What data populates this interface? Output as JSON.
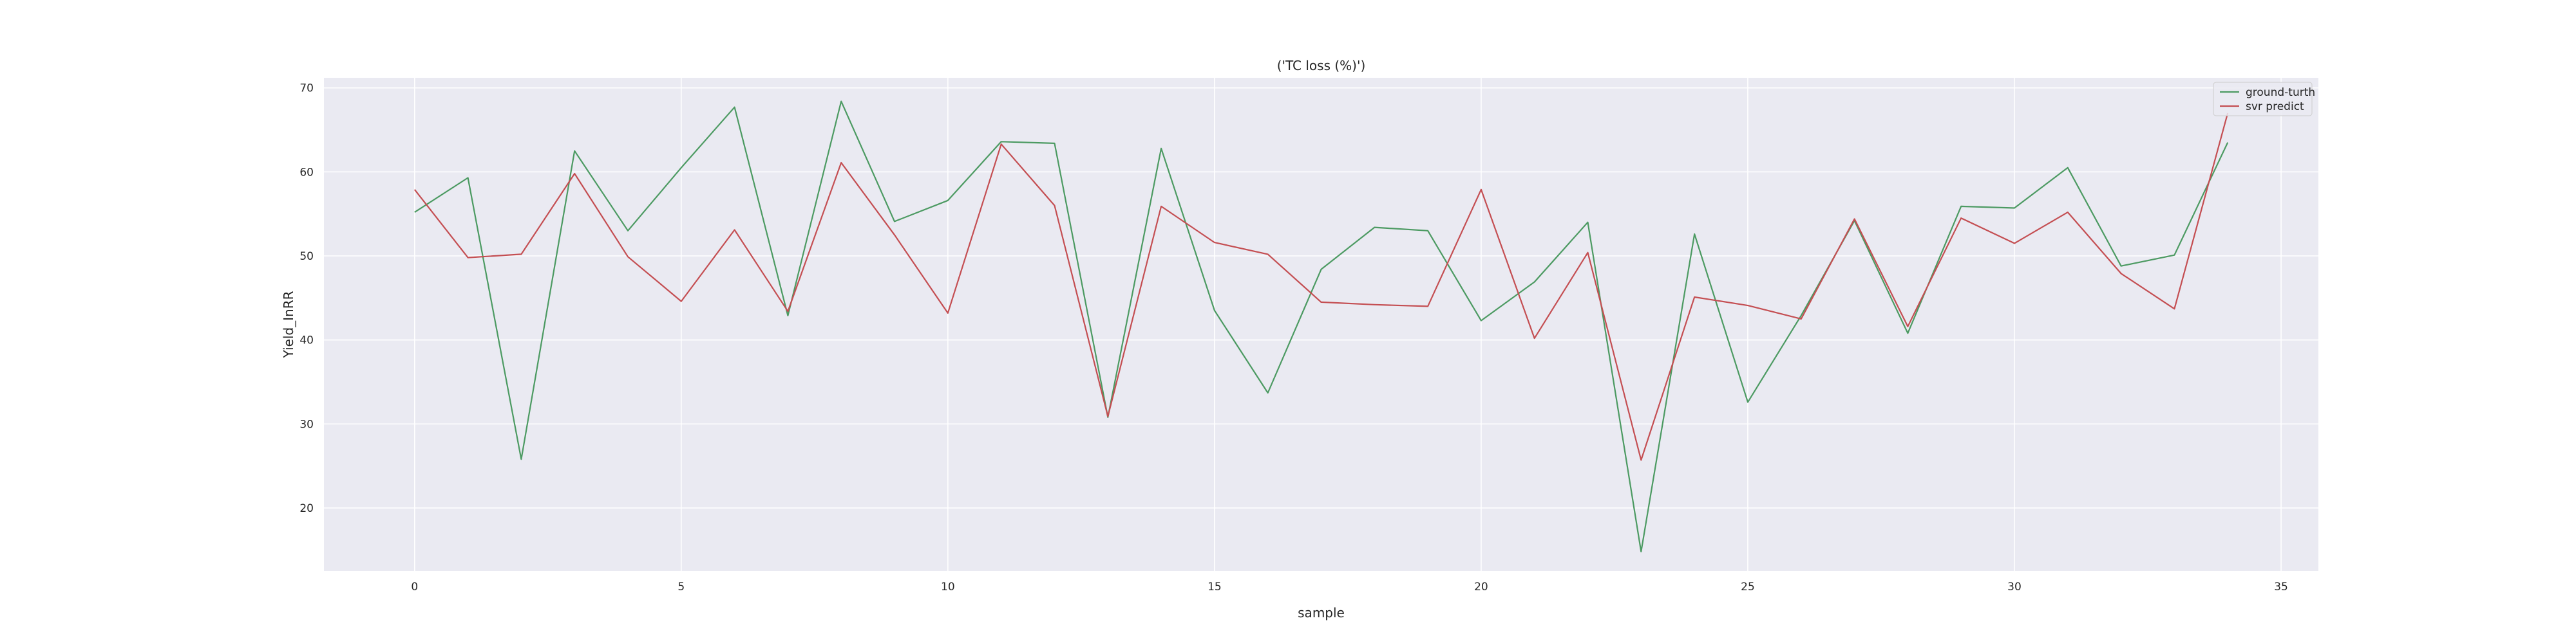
{
  "chart_data": {
    "type": "line",
    "title": "('TC loss (%)')",
    "xlabel": "sample",
    "ylabel": "Yield_InRR",
    "xlim": [
      -1.7,
      35.7
    ],
    "ylim": [
      12.5,
      71.2
    ],
    "xticks": [
      0,
      5,
      10,
      15,
      20,
      25,
      30,
      35
    ],
    "yticks": [
      20,
      30,
      40,
      50,
      60,
      70
    ],
    "grid": true,
    "legend_position": "top-right",
    "x": [
      0,
      1,
      2,
      3,
      4,
      5,
      6,
      7,
      8,
      9,
      10,
      11,
      12,
      13,
      14,
      15,
      16,
      17,
      18,
      19,
      20,
      21,
      22,
      23,
      24,
      25,
      26,
      27,
      28,
      29,
      30,
      31,
      32,
      33,
      34
    ],
    "series": [
      {
        "name": "ground-turth",
        "color": "#4c9a62",
        "values": [
          55.2,
          59.3,
          25.8,
          62.5,
          53.0,
          60.5,
          67.7,
          42.9,
          68.4,
          54.1,
          56.6,
          63.6,
          63.4,
          30.8,
          62.8,
          43.5,
          33.7,
          48.4,
          53.4,
          53.0,
          42.3,
          46.9,
          54.0,
          14.8,
          52.6,
          32.6,
          42.9,
          54.2,
          40.8,
          55.9,
          55.7,
          60.5,
          48.8,
          50.1,
          63.5
        ]
      },
      {
        "name": "svr predict",
        "color": "#c44e52",
        "values": [
          57.9,
          49.8,
          50.2,
          59.8,
          49.9,
          44.6,
          53.1,
          43.4,
          61.1,
          52.5,
          43.2,
          63.3,
          56.0,
          30.9,
          55.9,
          51.6,
          50.2,
          44.5,
          44.2,
          44.0,
          57.9,
          40.2,
          50.4,
          25.7,
          45.1,
          44.1,
          42.5,
          54.4,
          41.6,
          54.5,
          51.5,
          55.2,
          47.9,
          43.7,
          67.0
        ]
      }
    ]
  }
}
